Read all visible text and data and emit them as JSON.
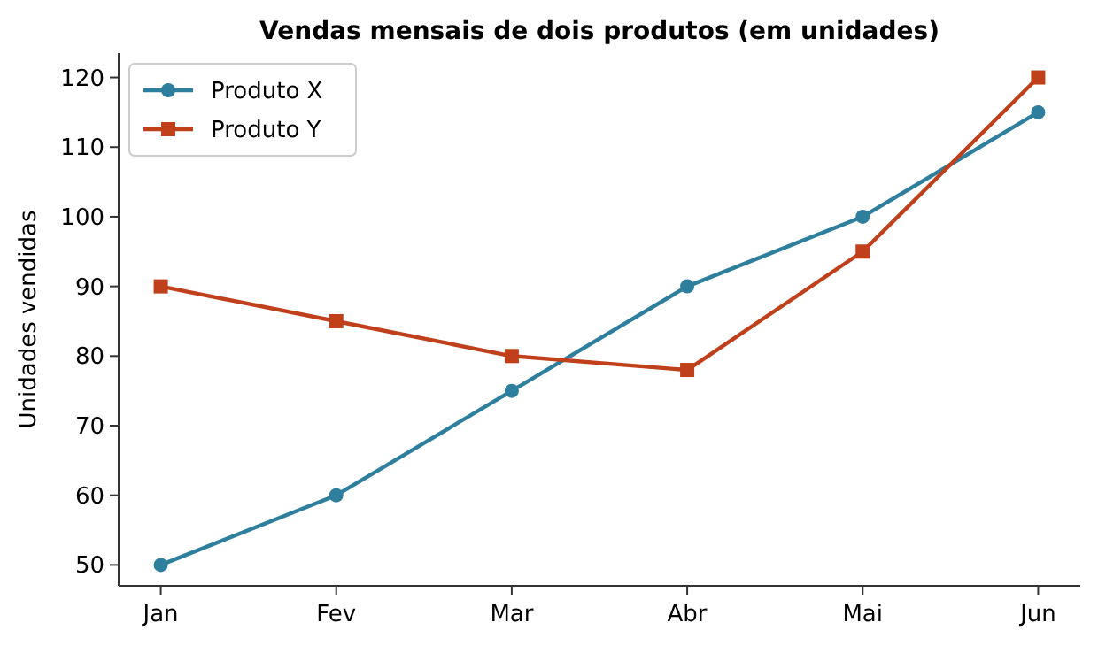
{
  "chart_data": {
    "type": "line",
    "title": "Vendas mensais de dois produtos (em unidades)",
    "ylabel": "Unidades vendidas",
    "categories": [
      "Jan",
      "Fev",
      "Mar",
      "Abr",
      "Mai",
      "Jun"
    ],
    "series": [
      {
        "name": "Produto X",
        "color": "#2e7f9e",
        "marker": "circle",
        "values": [
          50,
          60,
          75,
          90,
          100,
          115
        ]
      },
      {
        "name": "Produto Y",
        "color": "#c0401c",
        "marker": "square",
        "values": [
          90,
          85,
          80,
          78,
          95,
          120
        ]
      }
    ],
    "ylim": [
      47,
      123.5
    ],
    "yticks": [
      50,
      60,
      70,
      80,
      90,
      100,
      110,
      120
    ],
    "grid": false,
    "legend": "top left",
    "line_style": "solid"
  }
}
